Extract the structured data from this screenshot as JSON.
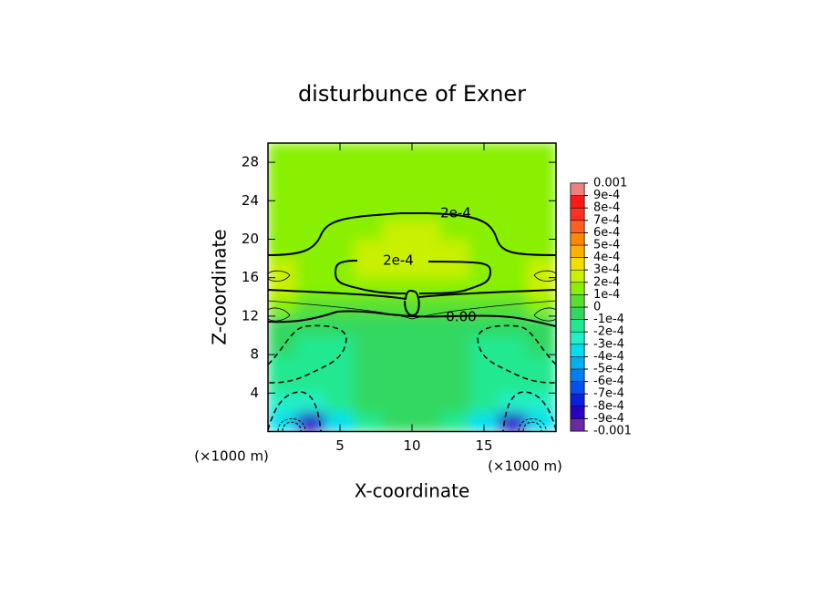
{
  "chart_data": {
    "type": "contour",
    "title": "disturbunce of Exner",
    "x_label": "X-coordinate",
    "y_label": "Z-coordinate",
    "x_unit": "(×1000 m)",
    "y_unit": "(×1000 m)",
    "xlim": [
      0,
      20
    ],
    "xticks": [
      5,
      10,
      15
    ],
    "ylim": [
      0,
      30
    ],
    "yticks": [
      4,
      8,
      12,
      16,
      20,
      24,
      28
    ],
    "x": [
      1,
      3,
      5,
      7,
      9,
      11,
      13,
      15,
      17,
      19
    ],
    "y": [
      1,
      3,
      5,
      7,
      9,
      11,
      13,
      15,
      17,
      19,
      21,
      23,
      25,
      27,
      29
    ],
    "z": [
      [
        -0.00035,
        -0.0008,
        -0.00035,
        -0.00015,
        -5e-05,
        -5e-05,
        -0.00015,
        -0.00035,
        -0.0008,
        -0.00035
      ],
      [
        -0.00025,
        -0.00025,
        -0.00015,
        -5e-05,
        -5e-05,
        -5e-05,
        -5e-05,
        -0.00015,
        -0.00025,
        -0.00025
      ],
      [
        -0.00015,
        -0.00015,
        -0.00015,
        -5e-05,
        -5e-05,
        -5e-05,
        -5e-05,
        -0.00015,
        -0.00015,
        -0.00015
      ],
      [
        -0.00015,
        -0.00015,
        -0.00015,
        -5e-05,
        -5e-05,
        -5e-05,
        -5e-05,
        -0.00015,
        -0.00015,
        -0.00015
      ],
      [
        -5e-05,
        -0.00015,
        -0.00015,
        -5e-05,
        -5e-05,
        -5e-05,
        -5e-05,
        -0.00015,
        -0.00015,
        -5e-05
      ],
      [
        -5e-05,
        -5e-05,
        -5e-05,
        -5e-05,
        -5e-05,
        -5e-05,
        -5e-05,
        -5e-05,
        -5e-05,
        -5e-05
      ],
      [
        0.00015,
        5e-05,
        5e-05,
        5e-05,
        5e-05,
        5e-05,
        5e-05,
        5e-05,
        5e-05,
        0.00015
      ],
      [
        0.00025,
        0.00015,
        0.00015,
        0.00015,
        0.00015,
        0.00015,
        0.00015,
        0.00015,
        0.00015,
        0.00025
      ],
      [
        0.00025,
        0.00015,
        0.00015,
        0.00025,
        0.00025,
        0.00025,
        0.00025,
        0.00015,
        0.00015,
        0.00025
      ],
      [
        0.00015,
        0.00015,
        0.00015,
        0.00025,
        0.00025,
        0.00025,
        0.00025,
        0.00015,
        0.00015,
        0.00015
      ],
      [
        0.00015,
        0.00015,
        0.00015,
        0.00015,
        0.00025,
        0.00025,
        0.00015,
        0.00015,
        0.00015,
        0.00015
      ],
      [
        0.00015,
        0.00015,
        0.00015,
        0.00015,
        0.00015,
        0.00015,
        0.00015,
        0.00015,
        0.00015,
        0.00015
      ],
      [
        0.00015,
        0.00015,
        0.00015,
        0.00015,
        0.00015,
        0.00015,
        0.00015,
        0.00015,
        0.00015,
        0.00015
      ],
      [
        0.00015,
        0.00015,
        0.00015,
        0.00015,
        0.00015,
        0.00015,
        0.00015,
        0.00015,
        0.00015,
        0.00015
      ],
      [
        0.00015,
        0.00015,
        0.00015,
        0.00015,
        0.00015,
        0.00015,
        0.00015,
        0.00015,
        0.00015,
        0.00015
      ]
    ],
    "level_colors": [
      "#6a2aa0",
      "#2a00c8",
      "#0a20e0",
      "#0050f0",
      "#0080f0",
      "#00b0f0",
      "#00e0f0",
      "#20f0c8",
      "#20e890",
      "#30d860",
      "#58e030",
      "#88f000",
      "#c8f000",
      "#f0e000",
      "#ffb000",
      "#ff8800",
      "#ff6020",
      "#ff3020",
      "#ff1818",
      "#f08080"
    ],
    "colorbar_ticks": [
      {
        "value": 0.001,
        "label": "0.001"
      },
      {
        "value": 0.0009,
        "label": "9e-4"
      },
      {
        "value": 0.0008,
        "label": "8e-4"
      },
      {
        "value": 0.0007,
        "label": "7e-4"
      },
      {
        "value": 0.0006,
        "label": "6e-4"
      },
      {
        "value": 0.0005,
        "label": "5e-4"
      },
      {
        "value": 0.0004,
        "label": "4e-4"
      },
      {
        "value": 0.0003,
        "label": "3e-4"
      },
      {
        "value": 0.0002,
        "label": "2e-4"
      },
      {
        "value": 0.0001,
        "label": "1e-4"
      },
      0,
      {
        "value": -0.0001,
        "label": "-1e-4"
      },
      {
        "value": -0.0002,
        "label": "-2e-4"
      },
      {
        "value": -0.0003,
        "label": "-3e-4"
      },
      {
        "value": -0.0004,
        "label": "-4e-4"
      },
      {
        "value": -0.0005,
        "label": "-5e-4"
      },
      {
        "value": -0.0006,
        "label": "-6e-4"
      },
      {
        "value": -0.0007,
        "label": "-7e-4"
      },
      {
        "value": -0.0008,
        "label": "-8e-4"
      },
      {
        "value": -0.0009,
        "label": "-9e-4"
      },
      {
        "value": -0.001,
        "label": "-0.001"
      }
    ],
    "contour_labels": [
      {
        "value": 0.0002,
        "label": "2e-4"
      },
      {
        "value": 0.0002,
        "label": "2e-4"
      },
      {
        "value": 0,
        "label": "0.00"
      }
    ]
  }
}
